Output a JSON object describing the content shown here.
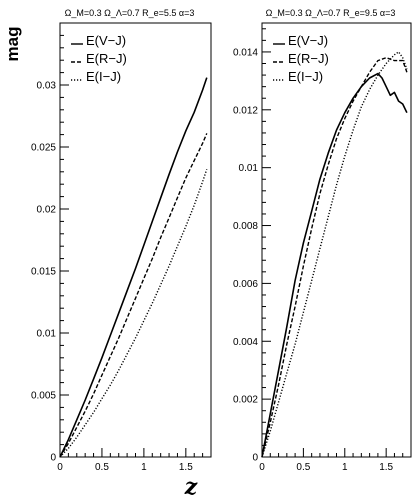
{
  "chart_data": [
    {
      "type": "line",
      "title": "Ω_M=0.3 Ω_Λ=0.7 R_e=5.5 α=3",
      "xlabel": "",
      "ylabel": "mag",
      "xlim": [
        0,
        1.8
      ],
      "ylim": [
        0,
        0.035
      ],
      "x_ticks": [
        0,
        0.5,
        1,
        1.5
      ],
      "x_tick_labels": [
        "0",
        "0.5",
        "1",
        "1.5"
      ],
      "y_ticks": [
        0,
        0.005,
        0.01,
        0.015,
        0.02,
        0.025,
        0.03
      ],
      "y_tick_labels": [
        "0",
        "0.005",
        "0.01",
        "0.015",
        "0.02",
        "0.025",
        "0.03"
      ],
      "grid": false,
      "legend_position": "top-left",
      "series": [
        {
          "name": "E(V−J)",
          "style": "solid",
          "x": [
            0,
            0.1,
            0.2,
            0.3,
            0.4,
            0.5,
            0.6,
            0.7,
            0.8,
            0.9,
            1.0,
            1.1,
            1.2,
            1.3,
            1.4,
            1.5,
            1.6,
            1.7,
            1.75
          ],
          "y": [
            0,
            0.0014,
            0.003,
            0.0046,
            0.0063,
            0.008,
            0.0098,
            0.0116,
            0.0134,
            0.0152,
            0.0171,
            0.019,
            0.0209,
            0.0228,
            0.0246,
            0.0263,
            0.0278,
            0.0296,
            0.0306
          ]
        },
        {
          "name": "E(R−J)",
          "style": "dashed",
          "x": [
            0,
            0.1,
            0.2,
            0.3,
            0.4,
            0.5,
            0.6,
            0.7,
            0.8,
            0.9,
            1.0,
            1.1,
            1.2,
            1.3,
            1.4,
            1.5,
            1.6,
            1.7,
            1.75
          ],
          "y": [
            0,
            0.0011,
            0.0024,
            0.0037,
            0.0051,
            0.0066,
            0.0081,
            0.0096,
            0.0112,
            0.0128,
            0.0144,
            0.016,
            0.0177,
            0.0193,
            0.0209,
            0.0225,
            0.0239,
            0.0253,
            0.0261
          ]
        },
        {
          "name": "E(I−J)",
          "style": "dotted",
          "x": [
            0,
            0.1,
            0.2,
            0.3,
            0.4,
            0.5,
            0.6,
            0.7,
            0.8,
            0.9,
            1.0,
            1.1,
            1.2,
            1.3,
            1.4,
            1.5,
            1.6,
            1.7,
            1.75
          ],
          "y": [
            0,
            0.0007,
            0.0016,
            0.0026,
            0.0036,
            0.0047,
            0.0058,
            0.007,
            0.0083,
            0.0096,
            0.011,
            0.0124,
            0.0139,
            0.0154,
            0.017,
            0.0186,
            0.0203,
            0.0222,
            0.0232
          ]
        }
      ]
    },
    {
      "type": "line",
      "title": "Ω_M=0.3 Ω_Λ=0.7 R_e=9.5 α=3",
      "xlabel": "z",
      "ylabel": "",
      "xlim": [
        0,
        1.8
      ],
      "ylim": [
        0,
        0.015
      ],
      "x_ticks": [
        0,
        0.5,
        1,
        1.5
      ],
      "x_tick_labels": [
        "0",
        "0.5",
        "1",
        "1.5"
      ],
      "y_ticks": [
        0,
        0.002,
        0.004,
        0.006,
        0.008,
        0.01,
        0.012,
        0.014
      ],
      "y_tick_labels": [
        "0",
        "0.002",
        "0.004",
        "0.006",
        "0.008",
        "0.01",
        "0.012",
        "0.014"
      ],
      "grid": false,
      "legend_position": "top-left",
      "series": [
        {
          "name": "E(V−J)",
          "style": "solid",
          "x": [
            0,
            0.1,
            0.2,
            0.3,
            0.4,
            0.5,
            0.6,
            0.7,
            0.8,
            0.9,
            1.0,
            1.1,
            1.2,
            1.3,
            1.4,
            1.45,
            1.5,
            1.55,
            1.6,
            1.65,
            1.7,
            1.75
          ],
          "y": [
            0,
            0.0015,
            0.003,
            0.0045,
            0.0061,
            0.0074,
            0.0085,
            0.0096,
            0.0105,
            0.0113,
            0.0119,
            0.0124,
            0.0128,
            0.0131,
            0.01325,
            0.0131,
            0.0128,
            0.0125,
            0.0126,
            0.0123,
            0.0122,
            0.0119
          ]
        },
        {
          "name": "E(R−J)",
          "style": "dashed",
          "x": [
            0,
            0.1,
            0.2,
            0.3,
            0.4,
            0.5,
            0.6,
            0.7,
            0.8,
            0.9,
            1.0,
            1.1,
            1.2,
            1.3,
            1.4,
            1.5,
            1.6,
            1.7,
            1.75
          ],
          "y": [
            0,
            0.0012,
            0.0025,
            0.0039,
            0.0052,
            0.0066,
            0.0079,
            0.0091,
            0.0101,
            0.011,
            0.0117,
            0.0123,
            0.0128,
            0.0133,
            0.0137,
            0.0138,
            0.0137,
            0.0137,
            0.0133
          ]
        },
        {
          "name": "E(I−J)",
          "style": "dotted",
          "x": [
            0,
            0.1,
            0.2,
            0.3,
            0.4,
            0.5,
            0.6,
            0.7,
            0.8,
            0.9,
            1.0,
            1.1,
            1.2,
            1.3,
            1.4,
            1.5,
            1.6,
            1.65,
            1.7,
            1.75
          ],
          "y": [
            0,
            0.0009,
            0.0019,
            0.0029,
            0.0039,
            0.005,
            0.0061,
            0.0072,
            0.0083,
            0.0094,
            0.0104,
            0.0113,
            0.0121,
            0.0127,
            0.0132,
            0.0136,
            0.0139,
            0.014,
            0.0138,
            0.0134
          ]
        }
      ]
    }
  ]
}
